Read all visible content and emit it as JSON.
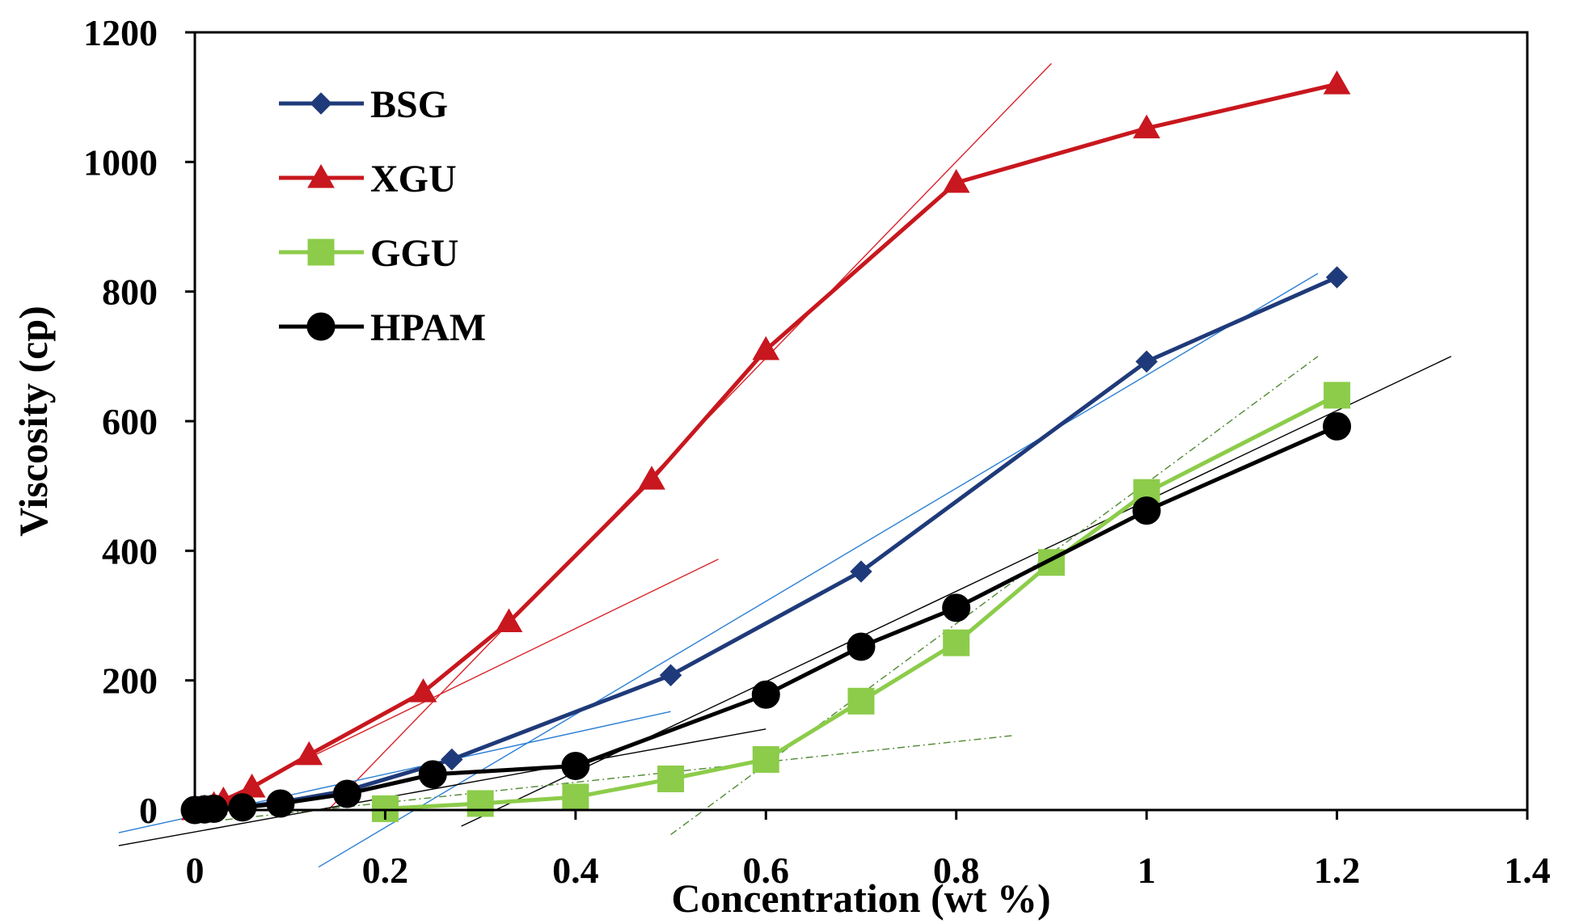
{
  "chart_data": {
    "type": "line",
    "title": "",
    "xlabel": "Concentration (wt %)",
    "ylabel": "Viscosity (cp)",
    "xlim": [
      0,
      1.4
    ],
    "ylim": [
      0,
      1200
    ],
    "xticks": [
      0,
      0.2,
      0.4,
      0.6,
      0.8,
      1,
      1.2,
      1.4
    ],
    "xtick_labels": [
      "0",
      "0.2",
      "0.4",
      "0.6",
      "0.8",
      "1",
      "1.2",
      "1.4"
    ],
    "yticks": [
      0,
      200,
      400,
      600,
      800,
      1000,
      1200
    ],
    "ytick_labels": [
      "0",
      "200",
      "400",
      "600",
      "800",
      "1000",
      "1200"
    ],
    "grid": false,
    "legend_position": "top-left",
    "series": [
      {
        "name": "BSG",
        "color": "#1f3a7a",
        "marker": "diamond",
        "x": [
          0,
          0.01,
          0.02,
          0.05,
          0.09,
          0.16,
          0.27,
          0.5,
          0.7,
          1.0,
          1.2
        ],
        "y": [
          0,
          1,
          2,
          5,
          12,
          30,
          78,
          208,
          368,
          692,
          822
        ]
      },
      {
        "name": "XGU",
        "color": "#c8171e",
        "marker": "triangle",
        "x": [
          0,
          0.01,
          0.02,
          0.03,
          0.06,
          0.12,
          0.24,
          0.33,
          0.48,
          0.6,
          0.8,
          1.0,
          1.2
        ],
        "y": [
          0,
          3,
          8,
          15,
          35,
          85,
          182,
          290,
          510,
          710,
          968,
          1052,
          1120
        ]
      },
      {
        "name": "GGU",
        "color": "#8ccc4a",
        "marker": "square",
        "x": [
          0.2,
          0.3,
          0.4,
          0.5,
          0.6,
          0.7,
          0.8,
          0.9,
          1.0,
          1.2
        ],
        "y": [
          2,
          10,
          20,
          48,
          78,
          168,
          258,
          382,
          490,
          640
        ]
      },
      {
        "name": "HPAM",
        "color": "#000000",
        "marker": "circle",
        "x": [
          0,
          0.01,
          0.02,
          0.05,
          0.09,
          0.16,
          0.25,
          0.4,
          0.6,
          0.7,
          0.8,
          1.0,
          1.2
        ],
        "y": [
          0,
          1,
          2,
          4,
          10,
          25,
          55,
          68,
          178,
          252,
          312,
          462,
          592
        ]
      }
    ],
    "trend_lines": [
      {
        "color": "#d9232a",
        "dash": "solid",
        "x": [
          0.0,
          0.55
        ],
        "y": [
          -5,
          387
        ]
      },
      {
        "color": "#d9232a",
        "dash": "solid",
        "x": [
          0.14,
          0.9
        ],
        "y": [
          0,
          1152
        ]
      },
      {
        "color": "#2b7fd4",
        "dash": "solid",
        "x": [
          -0.08,
          0.5
        ],
        "y": [
          -35,
          152
        ]
      },
      {
        "color": "#2b7fd4",
        "dash": "solid",
        "x": [
          0.13,
          1.18
        ],
        "y": [
          -88,
          828
        ]
      },
      {
        "color": "#000000",
        "dash": "solid",
        "x": [
          -0.08,
          0.6
        ],
        "y": [
          -55,
          125
        ]
      },
      {
        "color": "#000000",
        "dash": "solid",
        "x": [
          0.28,
          1.32
        ],
        "y": [
          -25,
          700
        ]
      },
      {
        "color": "#4f8a32",
        "dash": "dashdot",
        "x": [
          0.0,
          0.86
        ],
        "y": [
          -20,
          115
        ]
      },
      {
        "color": "#4f8a32",
        "dash": "dashdot",
        "x": [
          0.5,
          1.18
        ],
        "y": [
          -38,
          700
        ]
      }
    ]
  }
}
